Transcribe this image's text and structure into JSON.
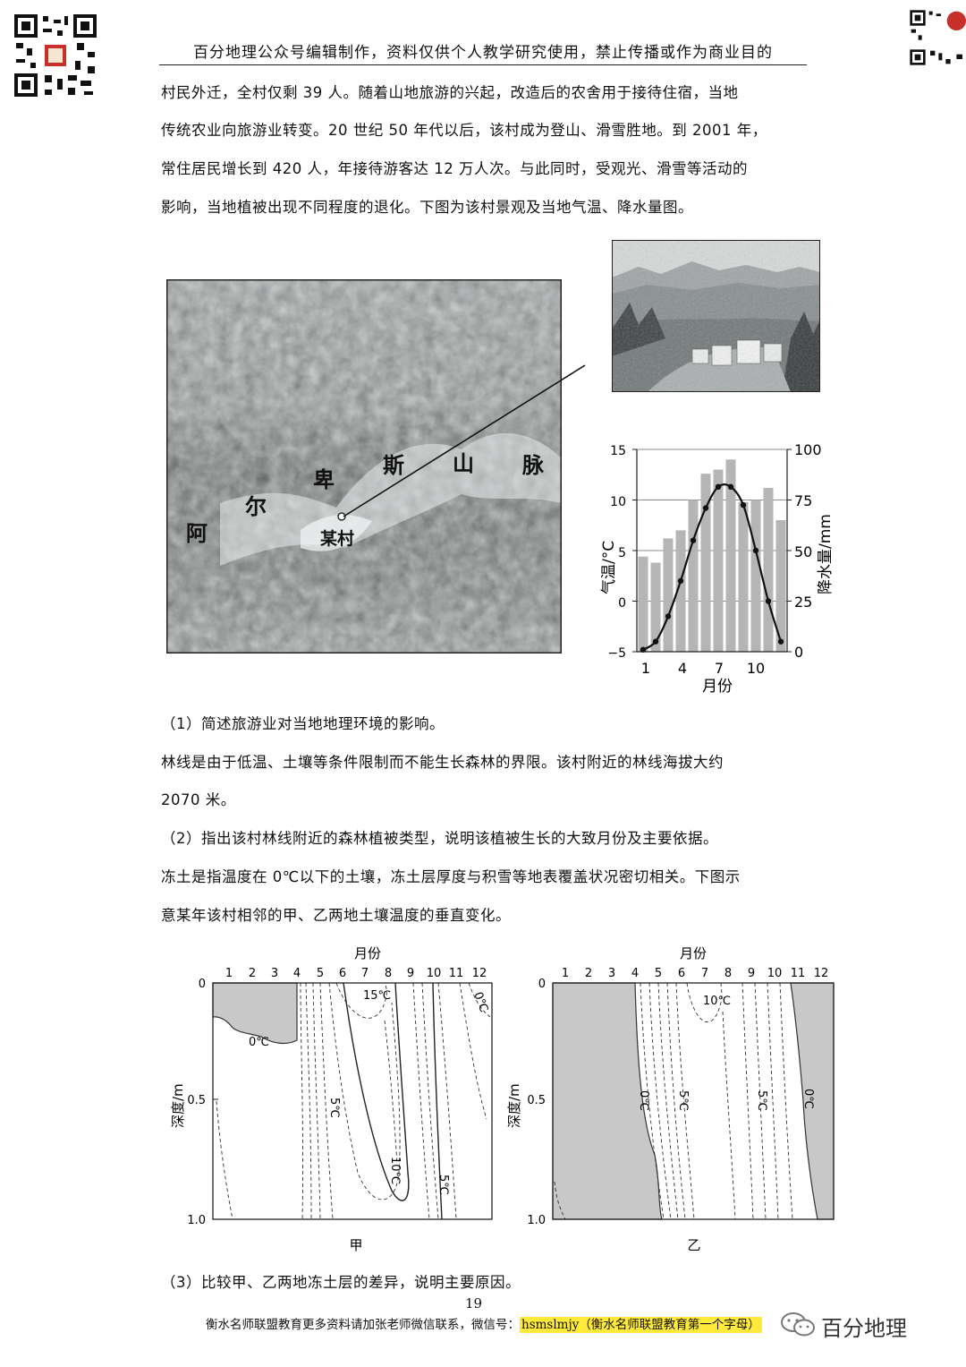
{
  "header": {
    "title": "百分地理公众号编辑制作，资料仅供个人教学研究使用，禁止传播或作为商业目的"
  },
  "intro_paragraph": [
    "村民外迁，全村仅剩 39 人。随着山地旅游的兴起，改造后的农舍用于接待住宿，当地",
    "传统农业向旅游业转变。20 世纪 50 年代以后，该村成为登山、滑雪胜地。到 2001 年，",
    "常住居民增长到 420 人，年接待游客达 12 万人次。与此同时，受观光、滑雪等活动的",
    "影响，当地植被出现不同程度的退化。下图为该村景观及当地气温、降水量图。"
  ],
  "map": {
    "mountain_chars": [
      "阿",
      "尔",
      "卑",
      "斯",
      "山",
      "脉"
    ],
    "village_label": "某村"
  },
  "climate_chart": {
    "chart_data": {
      "type": "bar+line",
      "categories": [
        1,
        2,
        3,
        4,
        5,
        6,
        7,
        8,
        9,
        10,
        11,
        12
      ],
      "precipitation_mm": [
        47,
        44,
        56,
        60,
        75,
        88,
        90,
        95,
        74,
        75,
        81,
        65
      ],
      "temperature_c": [
        -4.8,
        -4.0,
        -1.5,
        2.0,
        6.0,
        9.2,
        11.3,
        11.3,
        9.5,
        5.0,
        0.0,
        -4.0
      ],
      "x_ticks": [
        "1",
        "4",
        "7",
        "10"
      ],
      "left_ticks": [
        "15",
        "10",
        "5",
        "0",
        "−5"
      ],
      "right_ticks": [
        "100",
        "75",
        "50",
        "25",
        "0"
      ],
      "ylim_temp": [
        -5,
        15
      ],
      "ylim_precip": [
        0,
        100
      ],
      "xlabel": "月份",
      "ylabel_left": "气温/°C",
      "ylabel_right": "降水量/mm"
    }
  },
  "question1": "（1）简述旅游业对当地地理环境的影响。",
  "treeline_text": [
    "林线是由于低温、土壤等条件限制而不能生长森林的界限。该村附近的林线海拔大约",
    "2070 米。"
  ],
  "question2": "（2）指出该村林线附近的森林植被类型，说明该植被生长的大致月份及主要依据。",
  "frozen_text": [
    "冻土是指温度在 0℃以下的土壤，冻土层厚度与积雪等地表覆盖状况密切相关。下图示",
    "意某年该村相邻的甲、乙两地土壤温度的垂直变化。"
  ],
  "soil_charts": {
    "xlabel": "月份",
    "ylabel": "深度/m",
    "months": [
      "1",
      "2",
      "3",
      "4",
      "5",
      "6",
      "7",
      "8",
      "9",
      "10",
      "11",
      "12"
    ],
    "depth_ticks": [
      "0",
      "0.5",
      "1.0"
    ],
    "jia": {
      "name": "甲",
      "contour_labels": [
        "15℃",
        "0℃",
        "0℃",
        "5℃",
        "10℃",
        "5℃"
      ]
    },
    "yi": {
      "name": "乙",
      "contour_labels": [
        "10℃",
        "0℃",
        "5℃",
        "5℃",
        "0℃"
      ]
    }
  },
  "question3": "（3）比较甲、乙两地冻土层的差异，说明主要原因。",
  "footer": {
    "page_number": "19",
    "text": "衡水名师联盟教育更多资料请加张老师微信联系，微信号：",
    "highlight": "hsmslmjy（衡水名师联盟教育第一个字母）",
    "brand": "百分地理"
  }
}
